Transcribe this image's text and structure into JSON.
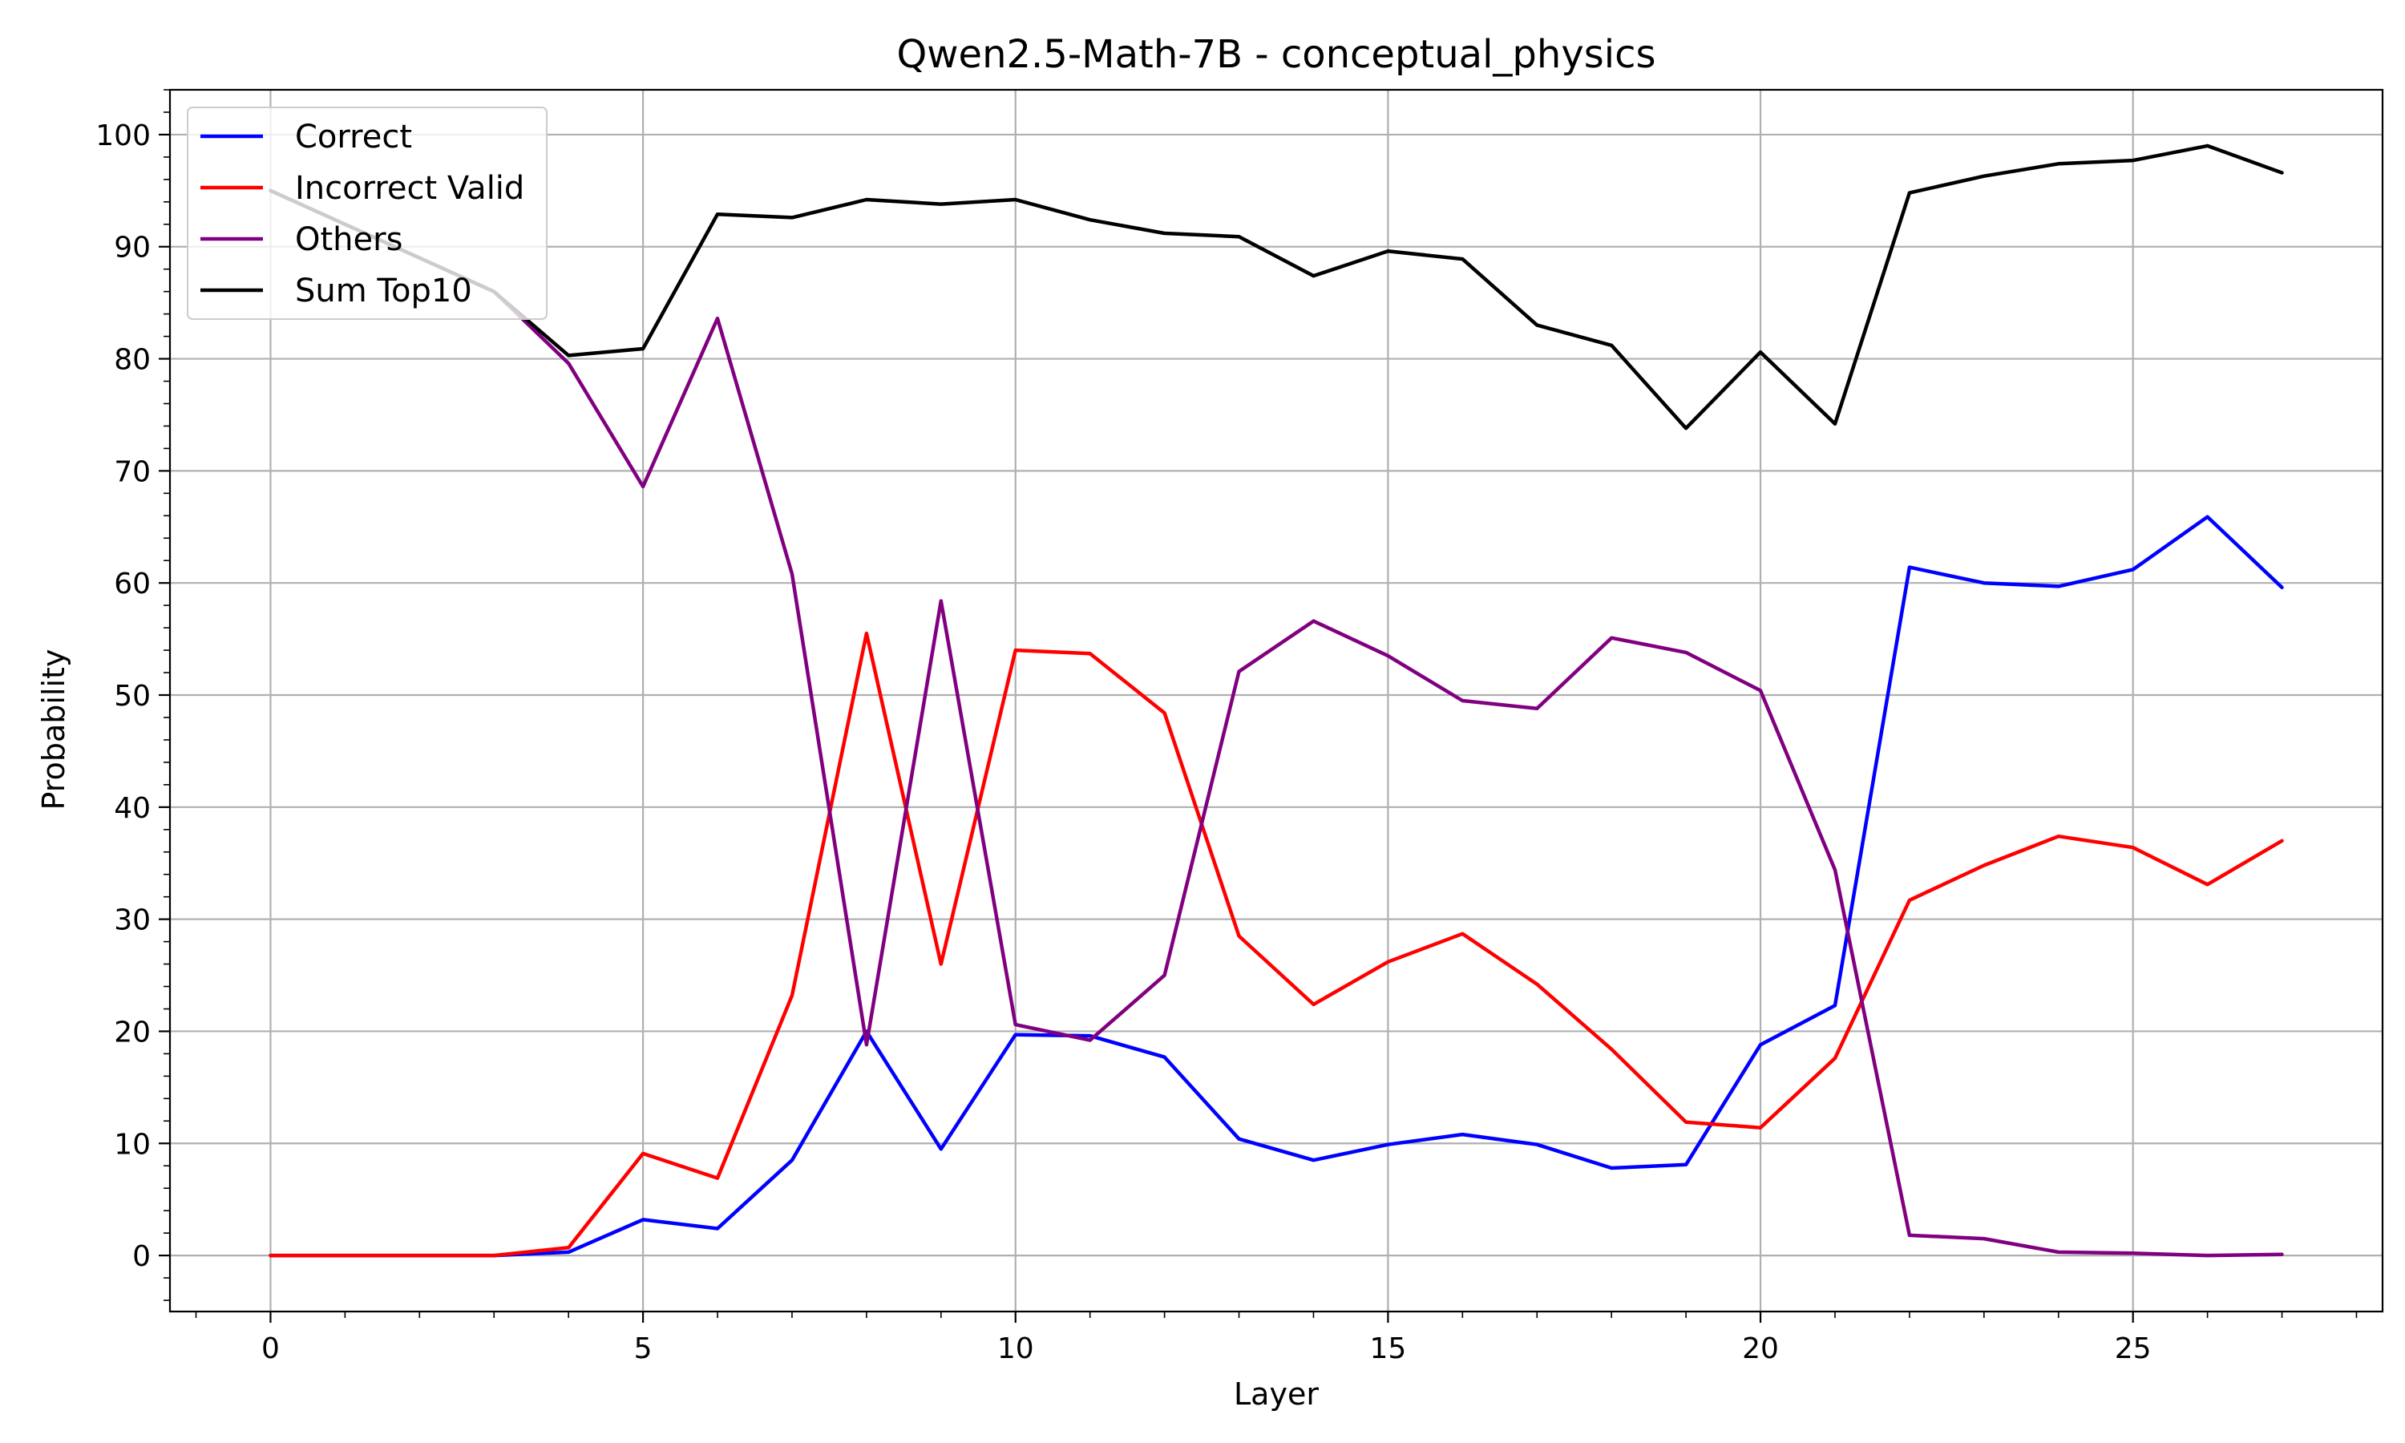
{
  "chart_data": {
    "type": "line",
    "title": "Qwen2.5-Math-7B - conceptual_physics",
    "xlabel": "Layer",
    "ylabel": "Probability",
    "xlim": [
      -1.35,
      28.35
    ],
    "ylim": [
      -5,
      104
    ],
    "xticks": [
      0,
      5,
      10,
      15,
      20,
      25
    ],
    "yticks": [
      0,
      10,
      20,
      30,
      40,
      50,
      60,
      70,
      80,
      90,
      100
    ],
    "grid": true,
    "legend_position": "top-left",
    "x": [
      0,
      1,
      2,
      3,
      4,
      5,
      6,
      7,
      8,
      9,
      10,
      11,
      12,
      13,
      14,
      15,
      16,
      17,
      18,
      19,
      20,
      21,
      22,
      23,
      24,
      25,
      26,
      27
    ],
    "series": [
      {
        "name": "Correct",
        "color": "#0000ff",
        "values": [
          0,
          0,
          0,
          0,
          0.3,
          3.2,
          2.4,
          8.5,
          20.0,
          9.5,
          19.7,
          19.6,
          17.7,
          10.4,
          8.5,
          9.9,
          10.8,
          9.9,
          7.8,
          8.1,
          18.8,
          22.3,
          61.4,
          60.0,
          59.7,
          61.2,
          65.9,
          59.6
        ]
      },
      {
        "name": "Incorrect Valid",
        "color": "#ff0000",
        "values": [
          0,
          0,
          0,
          0,
          0.7,
          9.1,
          6.9,
          23.2,
          55.5,
          26.0,
          54.0,
          53.7,
          48.4,
          28.5,
          22.4,
          26.2,
          28.7,
          24.2,
          18.4,
          11.9,
          11.4,
          17.6,
          31.7,
          34.8,
          37.4,
          36.4,
          33.1,
          37.0
        ]
      },
      {
        "name": "Others",
        "color": "#800080",
        "values": [
          95.0,
          92.0,
          89.0,
          86.0,
          79.6,
          68.6,
          83.6,
          60.8,
          18.8,
          58.4,
          20.6,
          19.2,
          25.0,
          52.1,
          56.6,
          53.5,
          49.5,
          48.8,
          55.1,
          53.8,
          50.4,
          34.4,
          1.8,
          1.5,
          0.3,
          0.2,
          0.0,
          0.1
        ]
      },
      {
        "name": "Sum Top10",
        "color": "#000000",
        "values": [
          95.0,
          92.0,
          89.0,
          86.0,
          80.3,
          80.9,
          92.9,
          92.6,
          94.2,
          93.8,
          94.2,
          92.4,
          91.2,
          90.9,
          87.4,
          89.6,
          88.9,
          83.0,
          81.2,
          73.8,
          80.6,
          74.2,
          94.8,
          96.3,
          97.4,
          97.7,
          99.0,
          96.6
        ]
      }
    ]
  }
}
